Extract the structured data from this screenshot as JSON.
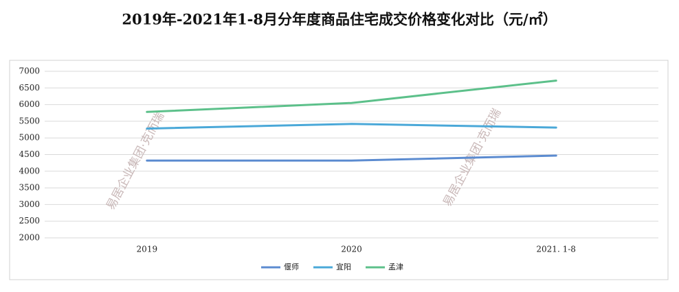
{
  "chart_data": {
    "type": "line",
    "title": "2019年-2021年1-8月分年度商品住宅成交价格变化对比（元/㎡）",
    "categories": [
      "2019",
      "2020",
      "2021. 1-8"
    ],
    "series": [
      {
        "name": "偃师",
        "color": "#5b8bd0",
        "values": [
          4320,
          4320,
          4470
        ]
      },
      {
        "name": "宜阳",
        "color": "#4aa8d8",
        "values": [
          5280,
          5420,
          5310
        ]
      },
      {
        "name": "孟津",
        "color": "#5cc08a",
        "values": [
          5780,
          6050,
          6720
        ]
      }
    ],
    "ylim": [
      2000,
      7000
    ],
    "yticks": [
      2000,
      2500,
      3000,
      3500,
      4000,
      4500,
      5000,
      5500,
      6000,
      6500,
      7000
    ],
    "grid": true,
    "legend": "bottom",
    "watermark": "易居企业集团·克而瑞"
  }
}
